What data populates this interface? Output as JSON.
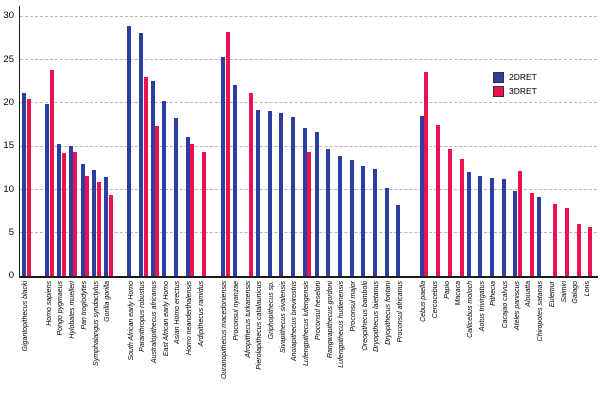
{
  "chart_data": {
    "type": "bar",
    "title": "",
    "xlabel": "",
    "ylabel": "",
    "ylim": [
      0,
      30
    ],
    "yticks": [
      0,
      5,
      10,
      15,
      20,
      25,
      30
    ],
    "grid": "horizontal-dashed",
    "legend_position": "upper-right",
    "series": [
      {
        "name": "2DRET",
        "color": "#2e3da0"
      },
      {
        "name": "3DRET",
        "color": "#e91350"
      }
    ],
    "groups": [
      [
        {
          "label": "Gigantopithecus blacki",
          "values": [
            21.1,
            20.4
          ]
        }
      ],
      [
        {
          "label": "Homo sapiens",
          "values": [
            19.9,
            23.8
          ]
        },
        {
          "label": "Pongo pygmaeus",
          "values": [
            15.2,
            14.2
          ]
        },
        {
          "label": "Hylobates muelleri",
          "values": [
            15.0,
            14.3
          ]
        },
        {
          "label": "Pan troglodytes",
          "values": [
            12.9,
            11.5
          ]
        },
        {
          "label": "Symphalangus syndactylus",
          "values": [
            12.2,
            10.8
          ]
        },
        {
          "label": "Gorilla gorilla",
          "values": [
            11.4,
            9.4
          ]
        }
      ],
      [
        {
          "label": "South African early Homo",
          "values": [
            28.9,
            null
          ]
        },
        {
          "label": "Paranthropus robustus",
          "values": [
            28.0,
            23.0
          ]
        },
        {
          "label": "Australopithecus africanus",
          "values": [
            22.5,
            17.3
          ]
        },
        {
          "label": "East African early Homo",
          "values": [
            20.2,
            null
          ]
        },
        {
          "label": "Asian Homo erectus",
          "values": [
            18.2,
            null
          ]
        },
        {
          "label": "Homo neanderthalensis",
          "values": [
            16.0,
            15.2
          ]
        },
        {
          "label": "Ardipithecus ramidus",
          "values": [
            null,
            14.3
          ]
        }
      ],
      [
        {
          "label": "Ouranopithecus macedoniensis",
          "values": [
            25.3,
            28.2
          ]
        },
        {
          "label": "Proconsul nyanzae",
          "values": [
            22.0,
            null
          ]
        },
        {
          "label": "Afropithecus turkanensis",
          "values": [
            null,
            21.1
          ]
        },
        {
          "label": "Pierolapithecus catalaunicus",
          "values": [
            19.2,
            null
          ]
        },
        {
          "label": "Griphopithecus sp.",
          "values": [
            19.0,
            null
          ]
        },
        {
          "label": "Sivapithecus sivalensis",
          "values": [
            18.8,
            null
          ]
        },
        {
          "label": "Anoiapithecus brevirostris",
          "values": [
            18.4,
            null
          ]
        },
        {
          "label": "Lufengpithecus lufengensis",
          "values": [
            17.1,
            14.3
          ]
        },
        {
          "label": "Proconsul heseloni",
          "values": [
            16.6,
            null
          ]
        },
        {
          "label": "Rangwapithecus gordoni",
          "values": [
            14.6,
            null
          ]
        },
        {
          "label": "Lufengpithecus hudienensis",
          "values": [
            13.8,
            null
          ]
        },
        {
          "label": "Proconsul major",
          "values": [
            13.4,
            null
          ]
        },
        {
          "label": "Oreopithecus bambolii",
          "values": [
            12.7,
            null
          ]
        },
        {
          "label": "Dryopithecus laietanus",
          "values": [
            12.4,
            null
          ]
        },
        {
          "label": "Dryopithecus fontani",
          "values": [
            10.2,
            null
          ]
        },
        {
          "label": "Proconsul africanus",
          "values": [
            8.2,
            null
          ]
        }
      ],
      [
        {
          "label": "Cebus paella",
          "values": [
            18.5,
            23.5
          ]
        },
        {
          "label": "Cercocebus",
          "values": [
            null,
            17.4
          ]
        },
        {
          "label": "Papio",
          "values": [
            null,
            14.7
          ]
        },
        {
          "label": "Macaca",
          "values": [
            null,
            13.5
          ]
        },
        {
          "label": "Callicebus moloch",
          "values": [
            12.0,
            null
          ]
        },
        {
          "label": "Aotus trivirgatus",
          "values": [
            11.5,
            null
          ]
        },
        {
          "label": "Pithecia",
          "values": [
            11.3,
            null
          ]
        },
        {
          "label": "Cacajao calvus",
          "values": [
            11.2,
            null
          ]
        },
        {
          "label": "Ateles paniscus",
          "values": [
            9.8,
            12.1
          ]
        },
        {
          "label": "Alouatta",
          "values": [
            null,
            9.6
          ]
        },
        {
          "label": "Chiropotes satanas",
          "values": [
            9.1,
            null
          ]
        },
        {
          "label": "Eulemur",
          "values": [
            null,
            8.3
          ]
        },
        {
          "label": "Saimiri",
          "values": [
            null,
            7.8
          ]
        },
        {
          "label": "Galago",
          "values": [
            null,
            6.0
          ]
        },
        {
          "label": "Loris",
          "values": [
            null,
            5.6
          ]
        }
      ]
    ]
  }
}
